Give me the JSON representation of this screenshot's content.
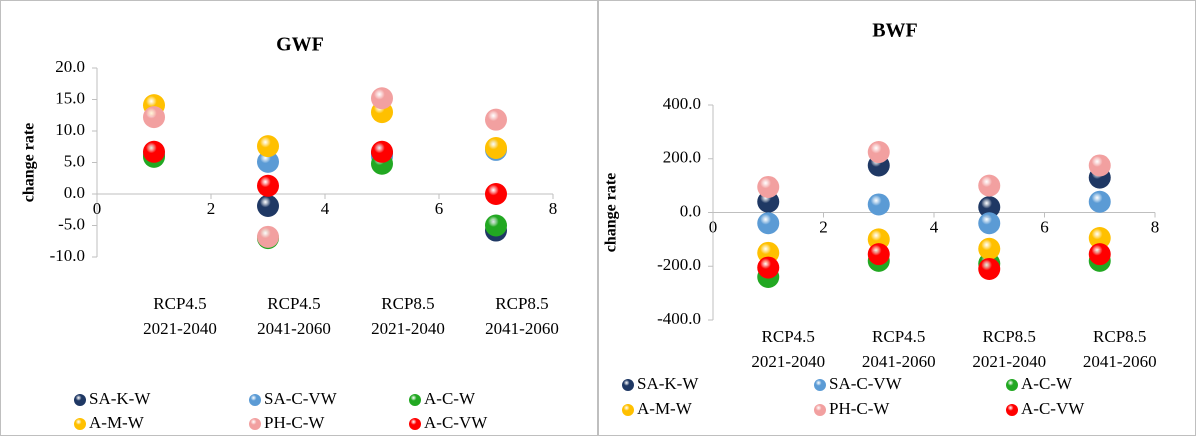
{
  "chart_data": [
    {
      "type": "scatter",
      "title": "GWF",
      "y_label": "change rate",
      "x": [
        1,
        3,
        5,
        7
      ],
      "xlim": [
        0,
        8
      ],
      "xticks": [
        0,
        2,
        4,
        6,
        8
      ],
      "ylim": [
        -10,
        20
      ],
      "yticks": [
        {
          "value": -10,
          "label": "-10.0"
        },
        {
          "value": -5,
          "label": "-5.0"
        },
        {
          "value": 0,
          "label": "0.0"
        },
        {
          "value": 5,
          "label": "5.0"
        },
        {
          "value": 10,
          "label": "10.0"
        },
        {
          "value": 15,
          "label": "15.0"
        },
        {
          "value": 20,
          "label": "20.0"
        }
      ],
      "category_labels": [
        [
          "RCP4.5",
          "2021-2040"
        ],
        [
          "RCP4.5",
          "2041-2060"
        ],
        [
          "RCP8.5",
          "2021-2040"
        ],
        [
          "RCP8.5",
          "2041-2060"
        ]
      ],
      "series": [
        {
          "name": "SA-K-W",
          "color": "#1f3864",
          "values": [
            6.3,
            -1.9,
            6.5,
            -5.8
          ]
        },
        {
          "name": "SA-C-VW",
          "color": "#5b9bd5",
          "values": [
            6.5,
            5.1,
            6.0,
            7.0
          ]
        },
        {
          "name": "A-C-W",
          "color": "#22a822",
          "values": [
            5.9,
            -7.0,
            4.8,
            -5.0
          ]
        },
        {
          "name": "A-M-W",
          "color": "#ffc000",
          "values": [
            14.1,
            7.6,
            13.0,
            7.3
          ]
        },
        {
          "name": "PH-C-W",
          "color": "#f2a0a0",
          "values": [
            12.2,
            -6.8,
            15.2,
            11.8
          ]
        },
        {
          "name": "A-C-VW",
          "color": "#ff0000",
          "values": [
            6.7,
            1.3,
            6.7,
            0.0
          ]
        }
      ]
    },
    {
      "type": "scatter",
      "title": "BWF",
      "y_label": "change rate",
      "x": [
        1,
        3,
        5,
        7
      ],
      "xlim": [
        0,
        8
      ],
      "xticks": [
        0,
        2,
        4,
        6,
        8
      ],
      "ylim": [
        -400,
        400
      ],
      "yticks": [
        {
          "value": -400,
          "label": "-400.0"
        },
        {
          "value": -200,
          "label": "-200.0"
        },
        {
          "value": 0,
          "label": "0.0"
        },
        {
          "value": 200,
          "label": "200.0"
        },
        {
          "value": 400,
          "label": "400.0"
        }
      ],
      "category_labels": [
        [
          "RCP4.5",
          "2021-2040"
        ],
        [
          "RCP4.5",
          "2041-2060"
        ],
        [
          "RCP8.5",
          "2021-2040"
        ],
        [
          "RCP8.5",
          "2041-2060"
        ]
      ],
      "series": [
        {
          "name": "SA-K-W",
          "color": "#1f3864",
          "values": [
            40,
            175,
            20,
            130
          ]
        },
        {
          "name": "SA-C-VW",
          "color": "#5b9bd5",
          "values": [
            -40,
            30,
            -40,
            40
          ]
        },
        {
          "name": "A-C-W",
          "color": "#22a822",
          "values": [
            -240,
            -180,
            -190,
            -180
          ]
        },
        {
          "name": "A-M-W",
          "color": "#ffc000",
          "values": [
            -150,
            -100,
            -135,
            -95
          ]
        },
        {
          "name": "PH-C-W",
          "color": "#f2a0a0",
          "values": [
            95,
            225,
            100,
            175
          ]
        },
        {
          "name": "A-C-VW",
          "color": "#ff0000",
          "values": [
            -205,
            -155,
            -210,
            -155
          ]
        }
      ]
    }
  ]
}
